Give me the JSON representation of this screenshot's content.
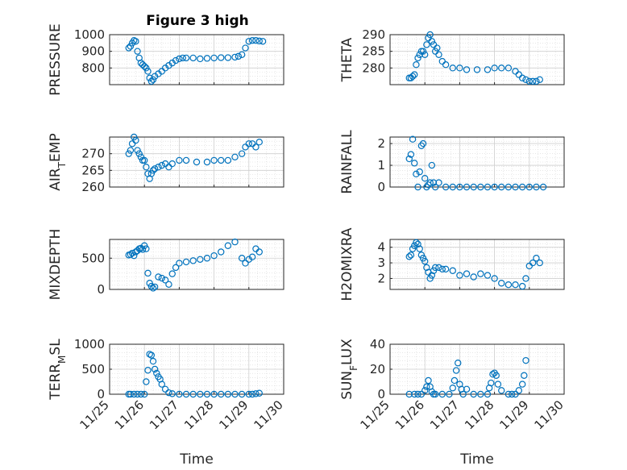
{
  "figure": {
    "title": "Figure 3 high"
  },
  "chart_data": [
    {
      "type": "scatter",
      "ylabel": "PRESSURE",
      "title": "Figure 3 high",
      "xlim": [
        25.0,
        30.0
      ],
      "ylim": [
        700,
        1000
      ],
      "yticks": [
        800,
        900,
        1000
      ],
      "xticks": [],
      "xlabel": "",
      "x": [
        25.55,
        25.6,
        25.65,
        25.7,
        25.75,
        25.8,
        25.85,
        25.9,
        25.95,
        26.0,
        26.05,
        26.1,
        26.15,
        26.2,
        26.25,
        26.3,
        26.4,
        26.5,
        26.6,
        26.7,
        26.8,
        26.9,
        27.0,
        27.1,
        27.2,
        27.4,
        27.6,
        27.8,
        28.0,
        28.2,
        28.4,
        28.6,
        28.7,
        28.8,
        28.9,
        29.0,
        29.1,
        29.2,
        29.3,
        29.4
      ],
      "y": [
        920,
        930,
        950,
        965,
        960,
        900,
        860,
        830,
        820,
        810,
        800,
        780,
        740,
        720,
        730,
        750,
        765,
        780,
        800,
        815,
        830,
        845,
        855,
        860,
        860,
        860,
        855,
        858,
        860,
        862,
        862,
        865,
        870,
        880,
        920,
        960,
        965,
        965,
        962,
        960
      ]
    },
    {
      "type": "scatter",
      "ylabel": "THETA",
      "xlim": [
        25.0,
        30.0
      ],
      "ylim": [
        275,
        290
      ],
      "yticks": [
        280,
        285,
        290
      ],
      "xticks": [],
      "xlabel": "",
      "x": [
        25.55,
        25.6,
        25.65,
        25.7,
        25.75,
        25.8,
        25.85,
        25.9,
        25.95,
        26.0,
        26.05,
        26.1,
        26.15,
        26.2,
        26.25,
        26.3,
        26.35,
        26.4,
        26.5,
        26.6,
        26.8,
        27.0,
        27.2,
        27.5,
        27.8,
        28.0,
        28.2,
        28.4,
        28.6,
        28.7,
        28.8,
        28.9,
        29.0,
        29.1,
        29.2,
        29.3
      ],
      "y": [
        277,
        277,
        277.5,
        278,
        281,
        283,
        284,
        285,
        285,
        284,
        287,
        289,
        290,
        288,
        287,
        285,
        286,
        284,
        282,
        281,
        280,
        280,
        279.5,
        279.5,
        279.5,
        280,
        280,
        280,
        279,
        278,
        277,
        276.5,
        276,
        276,
        276,
        276.5
      ]
    },
    {
      "type": "scatter",
      "ylabel": "AIR_TEMP",
      "xlim": [
        25.0,
        30.0
      ],
      "ylim": [
        260,
        275
      ],
      "yticks": [
        260,
        265,
        270
      ],
      "xticks": [],
      "xlabel": "",
      "x": [
        25.55,
        25.6,
        25.65,
        25.7,
        25.75,
        25.8,
        25.85,
        25.9,
        25.95,
        26.0,
        26.05,
        26.1,
        26.15,
        26.2,
        26.25,
        26.3,
        26.4,
        26.5,
        26.6,
        26.7,
        26.8,
        27.0,
        27.2,
        27.5,
        27.8,
        28.0,
        28.2,
        28.4,
        28.6,
        28.8,
        28.9,
        29.0,
        29.1,
        29.2,
        29.3
      ],
      "y": [
        270,
        271,
        273,
        275,
        274,
        271,
        270,
        269,
        268,
        268,
        266,
        264,
        262.5,
        264,
        265,
        265.5,
        266,
        266.5,
        267,
        266,
        267,
        268,
        268,
        267.5,
        267.5,
        268,
        268,
        268,
        269,
        270,
        272,
        273,
        273,
        272,
        273.5
      ]
    },
    {
      "type": "scatter",
      "ylabel": "RAINFALL",
      "xlim": [
        25.0,
        30.0
      ],
      "ylim": [
        0,
        2.3
      ],
      "yticks": [
        0,
        1,
        2
      ],
      "xticks": [],
      "xlabel": "",
      "x": [
        25.55,
        25.6,
        25.65,
        25.7,
        25.75,
        25.8,
        25.85,
        25.9,
        25.95,
        26.0,
        26.05,
        26.1,
        26.15,
        26.2,
        26.25,
        26.3,
        26.4,
        26.6,
        26.8,
        27.0,
        27.2,
        27.4,
        27.6,
        27.8,
        28.0,
        28.2,
        28.4,
        28.6,
        28.8,
        29.0,
        29.2,
        29.4
      ],
      "y": [
        1.3,
        1.5,
        2.2,
        1.1,
        0.6,
        0.0,
        0.7,
        1.9,
        2.0,
        0.4,
        0.0,
        0.1,
        0.2,
        1.0,
        0.2,
        0.0,
        0.2,
        0,
        0,
        0,
        0,
        0,
        0,
        0,
        0,
        0,
        0,
        0,
        0,
        0,
        0,
        0
      ]
    },
    {
      "type": "scatter",
      "ylabel": "MIXDEPTH",
      "xlim": [
        25.0,
        30.0
      ],
      "ylim": [
        0,
        800
      ],
      "yticks": [
        0,
        500
      ],
      "xticks": [],
      "xlabel": "",
      "x": [
        25.55,
        25.6,
        25.65,
        25.7,
        25.75,
        25.8,
        25.85,
        25.9,
        25.95,
        26.0,
        26.05,
        26.1,
        26.15,
        26.2,
        26.25,
        26.3,
        26.4,
        26.5,
        26.6,
        26.7,
        26.8,
        26.9,
        27.0,
        27.2,
        27.4,
        27.6,
        27.8,
        28.0,
        28.2,
        28.4,
        28.6,
        28.8,
        28.9,
        29.0,
        29.1,
        29.2,
        29.3
      ],
      "y": [
        550,
        560,
        580,
        540,
        600,
        620,
        650,
        660,
        640,
        700,
        650,
        260,
        100,
        50,
        20,
        40,
        200,
        180,
        150,
        80,
        250,
        350,
        420,
        440,
        460,
        480,
        500,
        540,
        600,
        700,
        760,
        500,
        420,
        480,
        520,
        650,
        600
      ]
    },
    {
      "type": "scatter",
      "ylabel": "H2OMIXRA",
      "xlim": [
        25.0,
        30.0
      ],
      "ylim": [
        1.3,
        4.5
      ],
      "yticks": [
        2,
        3,
        4
      ],
      "xticks": [],
      "xlabel": "",
      "x": [
        25.55,
        25.6,
        25.65,
        25.7,
        25.75,
        25.8,
        25.85,
        25.9,
        25.95,
        26.0,
        26.05,
        26.1,
        26.15,
        26.2,
        26.25,
        26.3,
        26.4,
        26.5,
        26.6,
        26.8,
        27.0,
        27.2,
        27.4,
        27.6,
        27.8,
        28.0,
        28.2,
        28.4,
        28.6,
        28.8,
        28.9,
        29.0,
        29.1,
        29.2,
        29.3
      ],
      "y": [
        3.4,
        3.5,
        3.9,
        4.1,
        4.3,
        4.2,
        3.9,
        3.5,
        3.3,
        3.1,
        2.7,
        2.4,
        2.0,
        2.2,
        2.5,
        2.7,
        2.7,
        2.6,
        2.6,
        2.5,
        2.2,
        2.3,
        2.1,
        2.3,
        2.2,
        2.0,
        1.7,
        1.6,
        1.6,
        1.5,
        2.0,
        2.8,
        3.0,
        3.3,
        3.0
      ]
    },
    {
      "type": "scatter",
      "ylabel": "TERR_MSL",
      "xlim": [
        25.0,
        30.0
      ],
      "ylim": [
        0,
        1000
      ],
      "yticks": [
        0,
        500,
        1000
      ],
      "xticks": [
        "11/25",
        "11/26",
        "11/27",
        "11/28",
        "11/29",
        "11/30"
      ],
      "xlabel": "Time",
      "x": [
        25.55,
        25.6,
        25.7,
        25.8,
        25.9,
        26.0,
        26.05,
        26.1,
        26.15,
        26.2,
        26.25,
        26.3,
        26.35,
        26.4,
        26.45,
        26.5,
        26.6,
        26.7,
        26.8,
        27.0,
        27.2,
        27.4,
        27.6,
        27.8,
        28.0,
        28.2,
        28.4,
        28.6,
        28.8,
        29.0,
        29.1,
        29.2,
        29.3
      ],
      "y": [
        0,
        0,
        0,
        0,
        0,
        0,
        250,
        480,
        800,
        780,
        660,
        500,
        420,
        350,
        300,
        200,
        100,
        30,
        10,
        0,
        0,
        0,
        0,
        0,
        0,
        0,
        0,
        0,
        0,
        0,
        0,
        10,
        20
      ]
    },
    {
      "type": "scatter",
      "ylabel": "SUN_FLUX",
      "xlim": [
        25.0,
        30.0
      ],
      "ylim": [
        0,
        40
      ],
      "yticks": [
        0,
        20,
        40
      ],
      "xticks": [
        "11/25",
        "11/26",
        "11/27",
        "11/28",
        "11/29",
        "11/30"
      ],
      "xlabel": "Time",
      "x": [
        25.55,
        25.7,
        25.8,
        25.9,
        26.0,
        26.05,
        26.1,
        26.15,
        26.2,
        26.25,
        26.3,
        26.5,
        26.7,
        26.8,
        26.85,
        26.9,
        26.95,
        27.0,
        27.05,
        27.1,
        27.2,
        27.4,
        27.6,
        27.8,
        27.85,
        27.9,
        27.95,
        28.0,
        28.05,
        28.1,
        28.2,
        28.4,
        28.5,
        28.6,
        28.7,
        28.8,
        28.85,
        28.9
      ],
      "y": [
        0,
        0,
        0,
        0,
        3,
        6,
        11,
        6,
        2,
        0,
        0,
        0,
        0,
        5,
        11,
        19,
        25,
        8,
        4,
        0,
        4,
        0,
        0,
        0,
        5,
        9,
        16,
        17,
        15,
        8,
        3,
        0,
        0,
        0,
        3,
        8,
        15,
        27
      ]
    }
  ]
}
